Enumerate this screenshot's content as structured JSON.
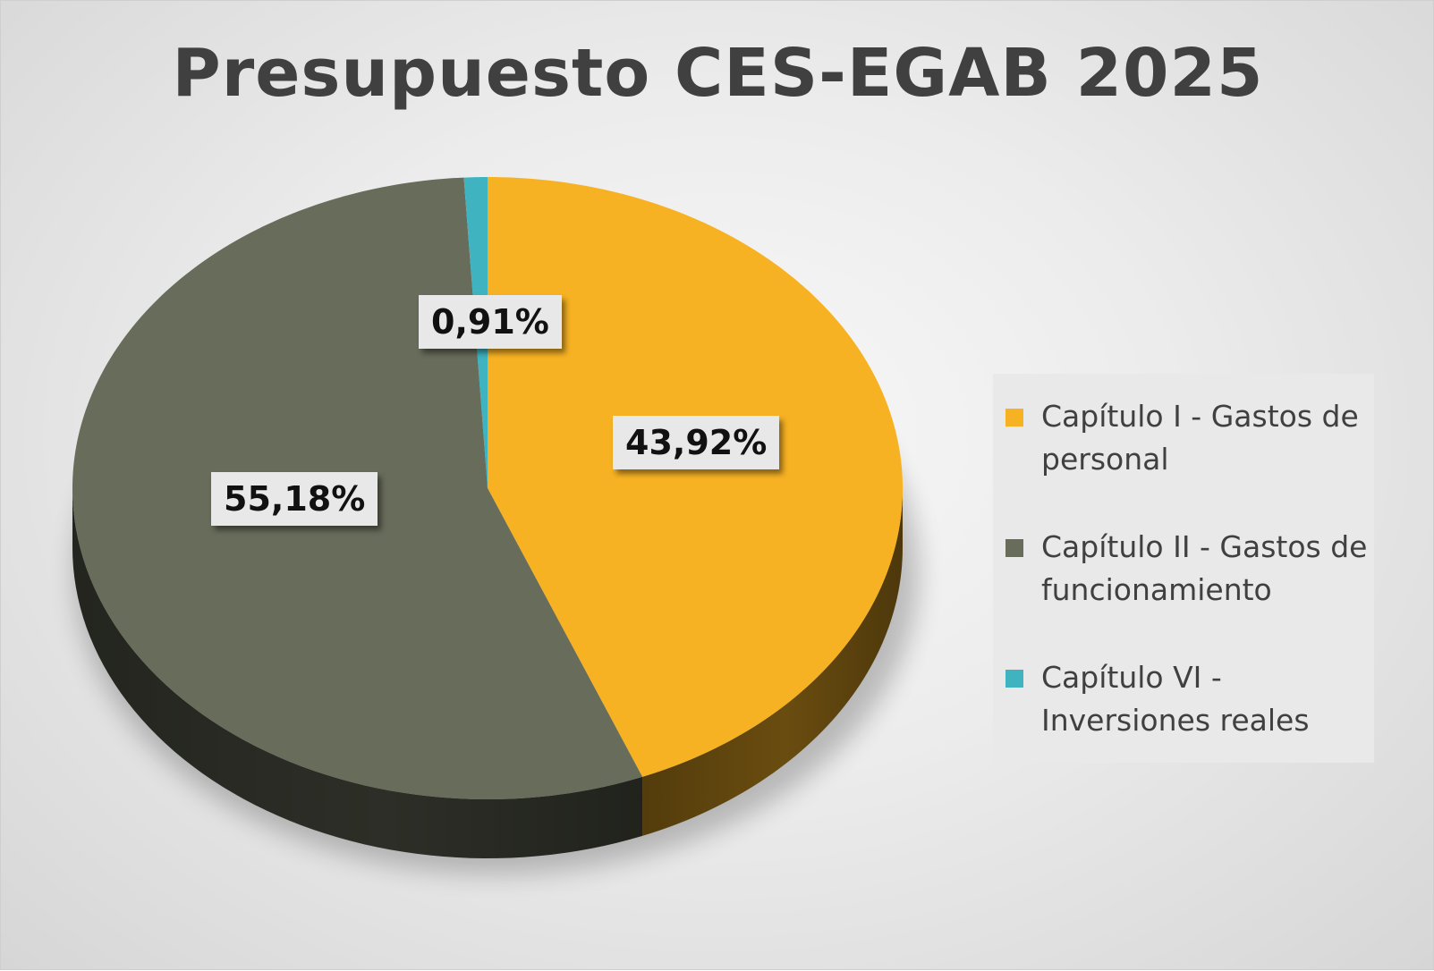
{
  "chart_data": {
    "type": "pie",
    "title": "Presupuesto CES-EGAB 2025",
    "categories": [
      "Capítulo I - Gastos de personal",
      "Capítulo II - Gastos de funcionamiento",
      "Capítulo VI - Inversiones reales"
    ],
    "values": [
      43.92,
      55.18,
      0.91
    ],
    "data_labels": [
      "43,92%",
      "55,18%",
      "0,91%"
    ],
    "colors": [
      "#f7b223",
      "#686c5a",
      "#3fb3c0"
    ],
    "legend_position": "right",
    "style": "3d"
  }
}
